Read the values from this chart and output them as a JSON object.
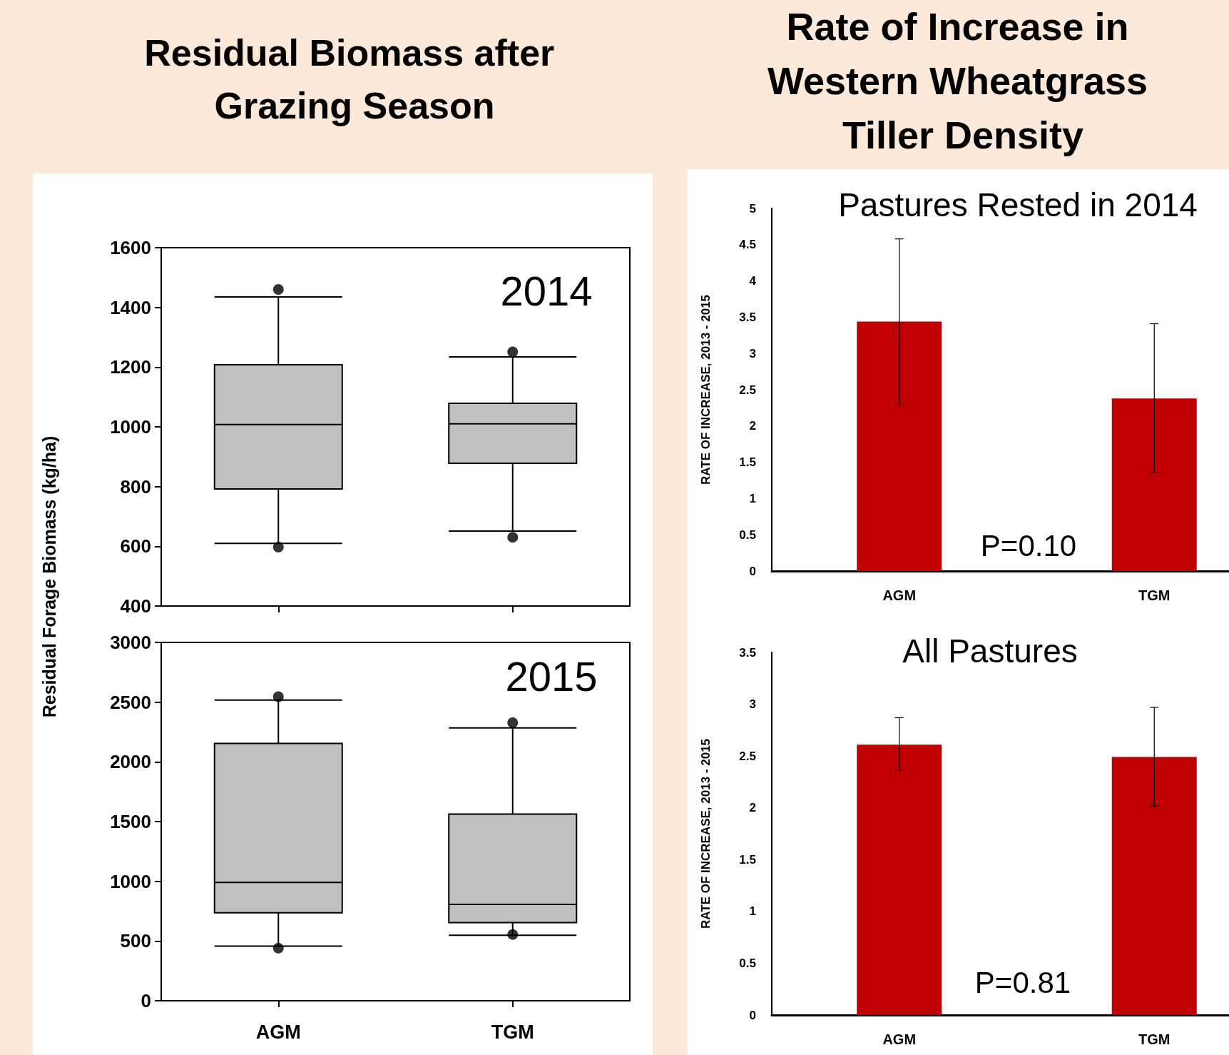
{
  "chart_data": [
    {
      "type": "box",
      "title": "Residual Biomass after Grazing Season",
      "ylabel": "Residual Forage Biomass (kg/ha)",
      "categories": [
        "AGM",
        "TGM"
      ],
      "color": "#c0c0c0",
      "tick_labels": "y",
      "ylim": [
        400,
        1600
      ],
      "yticks": [
        400,
        600,
        800,
        1000,
        1200,
        1400,
        1600
      ],
      "annotations": [
        "2014"
      ],
      "boxes": [
        {
          "low": 610,
          "q1": 792,
          "median": 1008,
          "q3": 1208,
          "high": 1435,
          "outliers": [
            1460,
            597
          ]
        },
        {
          "low": 651,
          "q1": 878,
          "median": 1010,
          "q3": 1079,
          "high": 1234,
          "outliers": [
            1251,
            630
          ]
        }
      ]
    },
    {
      "type": "box",
      "categories": [
        "AGM",
        "TGM"
      ],
      "color": "#c0c0c0",
      "ylim": [
        0,
        3000
      ],
      "yticks": [
        0,
        500,
        1000,
        1500,
        2000,
        2500,
        3000
      ],
      "annotations": [
        "2015"
      ],
      "boxes": [
        {
          "low": 457,
          "q1": 736,
          "median": 991,
          "q3": 2155,
          "high": 2517,
          "outliers": [
            2546,
            440
          ]
        },
        {
          "low": 549,
          "q1": 655,
          "median": 807,
          "q3": 1563,
          "high": 2284,
          "outliers": [
            2328,
            555
          ]
        }
      ]
    },
    {
      "type": "bar",
      "title": "Rate of Increase in Western Wheatgrass Tiller Density",
      "subtitle": "Pastures Rested in 2014",
      "ylabel": "RATE OF INCREASE, 2013 - 2015",
      "categories": [
        "AGM",
        "TGM"
      ],
      "color": "#c00000",
      "values": [
        3.44,
        2.38
      ],
      "errors": [
        [
          2.29,
          4.58
        ],
        [
          1.36,
          3.41
        ]
      ],
      "ylim": [
        0,
        5
      ],
      "yticks": [
        0,
        0.5,
        1,
        1.5,
        2,
        2.5,
        3,
        3.5,
        4,
        4.5,
        5
      ],
      "annotations": [
        "P=0.10"
      ]
    },
    {
      "type": "bar",
      "title": "All Pastures",
      "ylabel": "RATE OF INCREASE, 2013 - 2015",
      "categories": [
        "AGM",
        "TGM"
      ],
      "color": "#c00000",
      "values": [
        2.61,
        2.49
      ],
      "errors": [
        [
          2.36,
          2.87
        ],
        [
          2.02,
          2.97
        ]
      ],
      "ylim": [
        0,
        3.5
      ],
      "yticks": [
        0,
        0.5,
        1,
        1.5,
        2,
        2.5,
        3,
        3.5
      ],
      "annotations": [
        "P=0.81"
      ]
    }
  ]
}
